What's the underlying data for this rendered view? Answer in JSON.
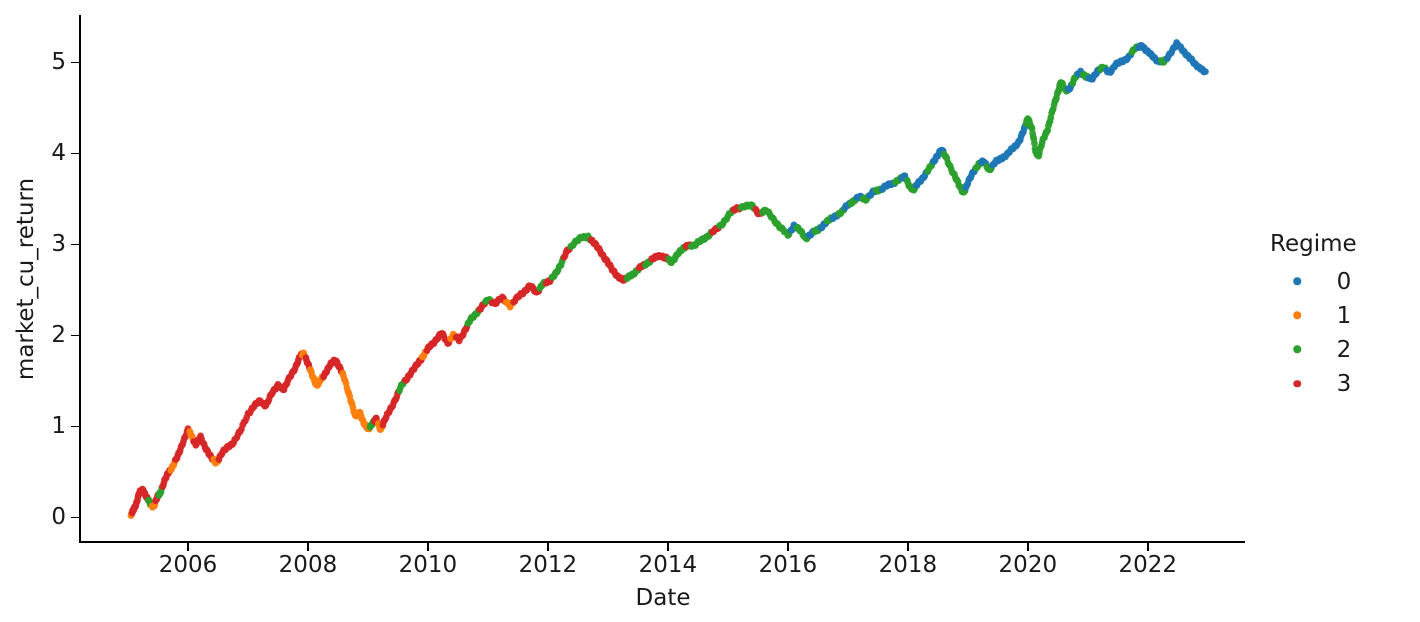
{
  "figure": {
    "background": "#ffffff",
    "text_color": "#1a1a1a",
    "axis_color": "#000000"
  },
  "chart_data": {
    "type": "scatter",
    "title": "",
    "xlabel": "Date",
    "ylabel": "market_cu_return",
    "x_ticks": [
      2006,
      2008,
      2010,
      2012,
      2014,
      2016,
      2018,
      2020,
      2022
    ],
    "y_ticks": [
      0,
      1,
      2,
      3,
      4,
      5
    ],
    "xlim": [
      2004.2,
      2023.62
    ],
    "ylim": [
      -0.27,
      5.52
    ],
    "grid": false,
    "legend": {
      "title": "Regime",
      "position": "right",
      "entries": [
        {
          "label": 0,
          "color": "#1f77b4"
        },
        {
          "label": 1,
          "color": "#ff7f0e"
        },
        {
          "label": 2,
          "color": "#2ca02c"
        },
        {
          "label": 3,
          "color": "#d62728"
        }
      ]
    },
    "points_format": [
      "year",
      "market_cu_return",
      "regime"
    ],
    "points": [
      [
        2005.05,
        0.02,
        1
      ],
      [
        2005.09,
        0.08,
        3
      ],
      [
        2005.14,
        0.16,
        3
      ],
      [
        2005.19,
        0.27,
        3
      ],
      [
        2005.25,
        0.31,
        3
      ],
      [
        2005.31,
        0.22,
        3
      ],
      [
        2005.37,
        0.15,
        2
      ],
      [
        2005.43,
        0.12,
        1
      ],
      [
        2005.49,
        0.22,
        3
      ],
      [
        2005.54,
        0.28,
        2
      ],
      [
        2005.61,
        0.4,
        3
      ],
      [
        2005.68,
        0.5,
        3
      ],
      [
        2005.75,
        0.57,
        1
      ],
      [
        2005.83,
        0.67,
        3
      ],
      [
        2005.91,
        0.82,
        3
      ],
      [
        2006.0,
        0.96,
        3
      ],
      [
        2006.06,
        0.9,
        1
      ],
      [
        2006.13,
        0.8,
        3
      ],
      [
        2006.21,
        0.88,
        3
      ],
      [
        2006.3,
        0.76,
        3
      ],
      [
        2006.39,
        0.65,
        3
      ],
      [
        2006.47,
        0.6,
        1
      ],
      [
        2006.56,
        0.7,
        3
      ],
      [
        2006.66,
        0.77,
        3
      ],
      [
        2006.76,
        0.83,
        3
      ],
      [
        2006.87,
        0.94,
        3
      ],
      [
        2007.0,
        1.14,
        3
      ],
      [
        2007.1,
        1.22,
        3
      ],
      [
        2007.2,
        1.28,
        3
      ],
      [
        2007.3,
        1.23,
        3
      ],
      [
        2007.4,
        1.36,
        3
      ],
      [
        2007.5,
        1.46,
        3
      ],
      [
        2007.6,
        1.4,
        3
      ],
      [
        2007.7,
        1.55,
        3
      ],
      [
        2007.8,
        1.66,
        3
      ],
      [
        2007.88,
        1.78,
        3
      ],
      [
        2007.93,
        1.81,
        1
      ],
      [
        2008.0,
        1.68,
        3
      ],
      [
        2008.07,
        1.57,
        1
      ],
      [
        2008.15,
        1.44,
        1
      ],
      [
        2008.22,
        1.52,
        1
      ],
      [
        2008.3,
        1.6,
        3
      ],
      [
        2008.38,
        1.68,
        3
      ],
      [
        2008.46,
        1.74,
        3
      ],
      [
        2008.54,
        1.63,
        3
      ],
      [
        2008.62,
        1.5,
        1
      ],
      [
        2008.71,
        1.3,
        1
      ],
      [
        2008.79,
        1.1,
        1
      ],
      [
        2008.86,
        1.17,
        1
      ],
      [
        2008.93,
        1.03,
        1
      ],
      [
        2009.0,
        0.97,
        1
      ],
      [
        2009.07,
        1.03,
        2
      ],
      [
        2009.14,
        1.08,
        3
      ],
      [
        2009.21,
        0.97,
        1
      ],
      [
        2009.29,
        1.08,
        3
      ],
      [
        2009.38,
        1.2,
        3
      ],
      [
        2009.48,
        1.33,
        3
      ],
      [
        2009.57,
        1.46,
        2
      ],
      [
        2009.67,
        1.55,
        3
      ],
      [
        2009.77,
        1.63,
        3
      ],
      [
        2009.87,
        1.73,
        3
      ],
      [
        2009.94,
        1.79,
        1
      ],
      [
        2010.03,
        1.88,
        3
      ],
      [
        2010.13,
        1.95,
        3
      ],
      [
        2010.23,
        2.02,
        3
      ],
      [
        2010.33,
        1.92,
        3
      ],
      [
        2010.42,
        2.0,
        1
      ],
      [
        2010.52,
        1.95,
        3
      ],
      [
        2010.62,
        2.06,
        3
      ],
      [
        2010.71,
        2.17,
        2
      ],
      [
        2010.81,
        2.25,
        2
      ],
      [
        2010.91,
        2.32,
        3
      ],
      [
        2011.01,
        2.4,
        2
      ],
      [
        2011.12,
        2.35,
        3
      ],
      [
        2011.24,
        2.41,
        3
      ],
      [
        2011.37,
        2.33,
        1
      ],
      [
        2011.49,
        2.41,
        3
      ],
      [
        2011.6,
        2.48,
        3
      ],
      [
        2011.7,
        2.55,
        3
      ],
      [
        2011.81,
        2.46,
        3
      ],
      [
        2011.92,
        2.58,
        2
      ],
      [
        2012.02,
        2.58,
        3
      ],
      [
        2012.12,
        2.68,
        2
      ],
      [
        2012.22,
        2.78,
        2
      ],
      [
        2012.32,
        2.93,
        3
      ],
      [
        2012.44,
        3.02,
        2
      ],
      [
        2012.56,
        3.07,
        2
      ],
      [
        2012.67,
        3.09,
        2
      ],
      [
        2012.77,
        3.01,
        3
      ],
      [
        2012.87,
        2.93,
        3
      ],
      [
        2012.97,
        2.83,
        3
      ],
      [
        2013.07,
        2.72,
        3
      ],
      [
        2013.17,
        2.65,
        3
      ],
      [
        2013.27,
        2.6,
        3
      ],
      [
        2013.37,
        2.66,
        2
      ],
      [
        2013.47,
        2.7,
        2
      ],
      [
        2013.57,
        2.76,
        3
      ],
      [
        2013.68,
        2.81,
        2
      ],
      [
        2013.78,
        2.85,
        3
      ],
      [
        2013.88,
        2.88,
        3
      ],
      [
        2013.97,
        2.85,
        3
      ],
      [
        2014.06,
        2.8,
        2
      ],
      [
        2014.16,
        2.9,
        2
      ],
      [
        2014.26,
        2.95,
        2
      ],
      [
        2014.34,
        3.0,
        3
      ],
      [
        2014.44,
        2.98,
        2
      ],
      [
        2014.56,
        3.05,
        2
      ],
      [
        2014.68,
        3.1,
        2
      ],
      [
        2014.8,
        3.16,
        3
      ],
      [
        2014.92,
        3.24,
        2
      ],
      [
        2015.04,
        3.34,
        2
      ],
      [
        2015.15,
        3.4,
        3
      ],
      [
        2015.28,
        3.42,
        2
      ],
      [
        2015.41,
        3.42,
        2
      ],
      [
        2015.52,
        3.34,
        3
      ],
      [
        2015.64,
        3.37,
        2
      ],
      [
        2015.76,
        3.28,
        2
      ],
      [
        2015.88,
        3.18,
        2
      ],
      [
        2016.0,
        3.1,
        2
      ],
      [
        2016.1,
        3.21,
        0
      ],
      [
        2016.2,
        3.15,
        2
      ],
      [
        2016.3,
        3.07,
        2
      ],
      [
        2016.4,
        3.12,
        0
      ],
      [
        2016.5,
        3.16,
        2
      ],
      [
        2016.6,
        3.22,
        0
      ],
      [
        2016.7,
        3.27,
        2
      ],
      [
        2016.8,
        3.32,
        0
      ],
      [
        2016.9,
        3.35,
        2
      ],
      [
        2017.0,
        3.44,
        0
      ],
      [
        2017.1,
        3.48,
        2
      ],
      [
        2017.2,
        3.52,
        0
      ],
      [
        2017.3,
        3.5,
        2
      ],
      [
        2017.42,
        3.57,
        0
      ],
      [
        2017.52,
        3.6,
        2
      ],
      [
        2017.63,
        3.64,
        0
      ],
      [
        2017.74,
        3.66,
        0
      ],
      [
        2017.85,
        3.72,
        2
      ],
      [
        2017.95,
        3.74,
        0
      ],
      [
        2018.03,
        3.64,
        2
      ],
      [
        2018.1,
        3.6,
        2
      ],
      [
        2018.18,
        3.68,
        0
      ],
      [
        2018.28,
        3.76,
        0
      ],
      [
        2018.38,
        3.85,
        2
      ],
      [
        2018.47,
        3.96,
        0
      ],
      [
        2018.56,
        4.04,
        0
      ],
      [
        2018.65,
        3.94,
        2
      ],
      [
        2018.76,
        3.78,
        2
      ],
      [
        2018.85,
        3.65,
        2
      ],
      [
        2018.93,
        3.57,
        2
      ],
      [
        2019.0,
        3.67,
        0
      ],
      [
        2019.09,
        3.8,
        0
      ],
      [
        2019.18,
        3.88,
        2
      ],
      [
        2019.27,
        3.91,
        0
      ],
      [
        2019.36,
        3.82,
        2
      ],
      [
        2019.46,
        3.9,
        0
      ],
      [
        2019.56,
        3.95,
        0
      ],
      [
        2019.66,
        3.99,
        0
      ],
      [
        2019.76,
        4.06,
        0
      ],
      [
        2019.86,
        4.14,
        0
      ],
      [
        2019.94,
        4.26,
        0
      ],
      [
        2020.0,
        4.4,
        2
      ],
      [
        2020.07,
        4.26,
        2
      ],
      [
        2020.13,
        4.02,
        2
      ],
      [
        2020.18,
        3.98,
        2
      ],
      [
        2020.25,
        4.14,
        2
      ],
      [
        2020.33,
        4.27,
        2
      ],
      [
        2020.41,
        4.46,
        2
      ],
      [
        2020.49,
        4.65,
        2
      ],
      [
        2020.55,
        4.79,
        2
      ],
      [
        2020.63,
        4.68,
        2
      ],
      [
        2020.71,
        4.73,
        0
      ],
      [
        2020.79,
        4.83,
        2
      ],
      [
        2020.88,
        4.9,
        0
      ],
      [
        2020.97,
        4.84,
        2
      ],
      [
        2021.06,
        4.81,
        0
      ],
      [
        2021.16,
        4.91,
        0
      ],
      [
        2021.26,
        4.94,
        2
      ],
      [
        2021.36,
        4.89,
        0
      ],
      [
        2021.46,
        4.97,
        0
      ],
      [
        2021.57,
        5.01,
        0
      ],
      [
        2021.68,
        5.06,
        0
      ],
      [
        2021.79,
        5.15,
        2
      ],
      [
        2021.9,
        5.19,
        0
      ],
      [
        2021.98,
        5.12,
        0
      ],
      [
        2022.08,
        5.07,
        0
      ],
      [
        2022.18,
        5.01,
        0
      ],
      [
        2022.27,
        5.0,
        2
      ],
      [
        2022.38,
        5.11,
        0
      ],
      [
        2022.48,
        5.2,
        0
      ],
      [
        2022.58,
        5.14,
        0
      ],
      [
        2022.68,
        5.06,
        0
      ],
      [
        2022.78,
        4.98,
        0
      ],
      [
        2022.88,
        4.94,
        0
      ],
      [
        2022.96,
        4.88,
        0
      ]
    ]
  }
}
